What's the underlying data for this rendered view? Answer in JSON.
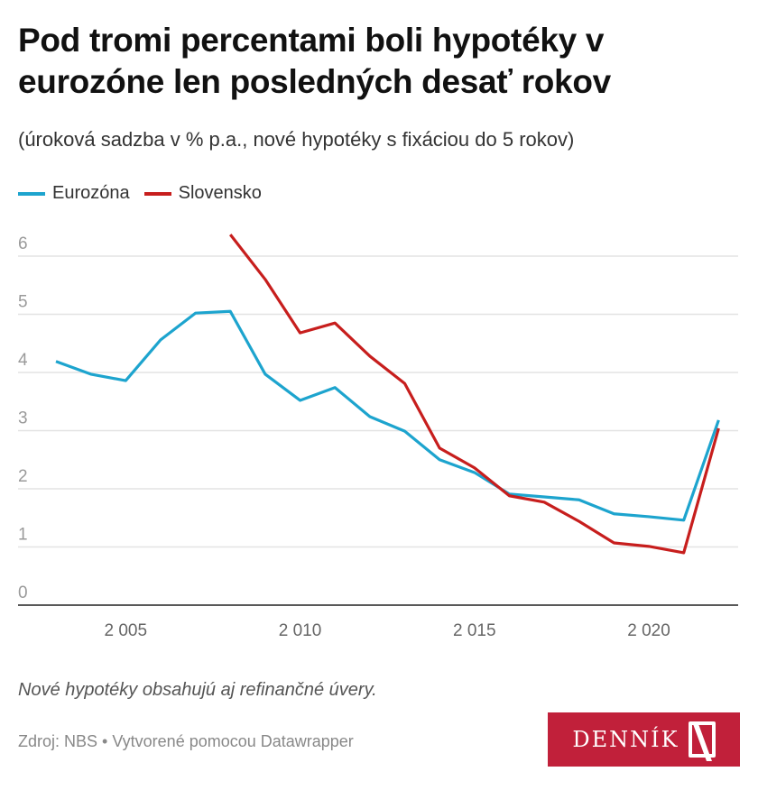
{
  "chart_data": {
    "type": "line",
    "title": "Pod tromi percentami boli hypotéky v eurozóne len posledných desať rokov",
    "subtitle": "(úroková sadzba v % p.a., nové hypotéky s fixáciou do 5 rokov)",
    "xlabel": "",
    "ylabel": "",
    "xlim": [
      2003,
      2022
    ],
    "ylim": [
      0,
      6.4
    ],
    "yticks": [
      "0",
      "1",
      "2",
      "3",
      "4",
      "5",
      "6"
    ],
    "ytick_values": [
      0,
      1,
      2,
      3,
      4,
      5,
      6
    ],
    "xticks": [
      "2 005",
      "2 010",
      "2 015",
      "2 020"
    ],
    "xtick_values": [
      2005,
      2010,
      2015,
      2020
    ],
    "grid": true,
    "legend_placement": "top-left",
    "series": [
      {
        "name": "Eurozóna",
        "color": "#1da4ce",
        "x": [
          2003,
          2004,
          2005,
          2006,
          2007,
          2008,
          2009,
          2010,
          2011,
          2012,
          2013,
          2014,
          2015,
          2016,
          2017,
          2018,
          2019,
          2020,
          2021,
          2022
        ],
        "values": [
          4.19,
          3.97,
          3.86,
          4.56,
          5.02,
          5.05,
          3.97,
          3.52,
          3.74,
          3.24,
          2.99,
          2.5,
          2.28,
          1.91,
          1.86,
          1.81,
          1.57,
          1.52,
          1.46,
          3.18
        ]
      },
      {
        "name": "Slovensko",
        "color": "#c71e1d",
        "x": [
          2008,
          2009,
          2010,
          2011,
          2012,
          2013,
          2014,
          2015,
          2016,
          2017,
          2018,
          2019,
          2020,
          2021,
          2022
        ],
        "values": [
          6.37,
          5.6,
          4.68,
          4.85,
          4.28,
          3.81,
          2.7,
          2.36,
          1.88,
          1.77,
          1.44,
          1.07,
          1.01,
          0.9,
          3.04
        ]
      }
    ]
  },
  "note": "Nové hypotéky obsahujú aj refinančné úvery.",
  "source": "Zdroj: NBS • Vytvorené pomocou Datawrapper",
  "logo_text": "DENNÍK N"
}
